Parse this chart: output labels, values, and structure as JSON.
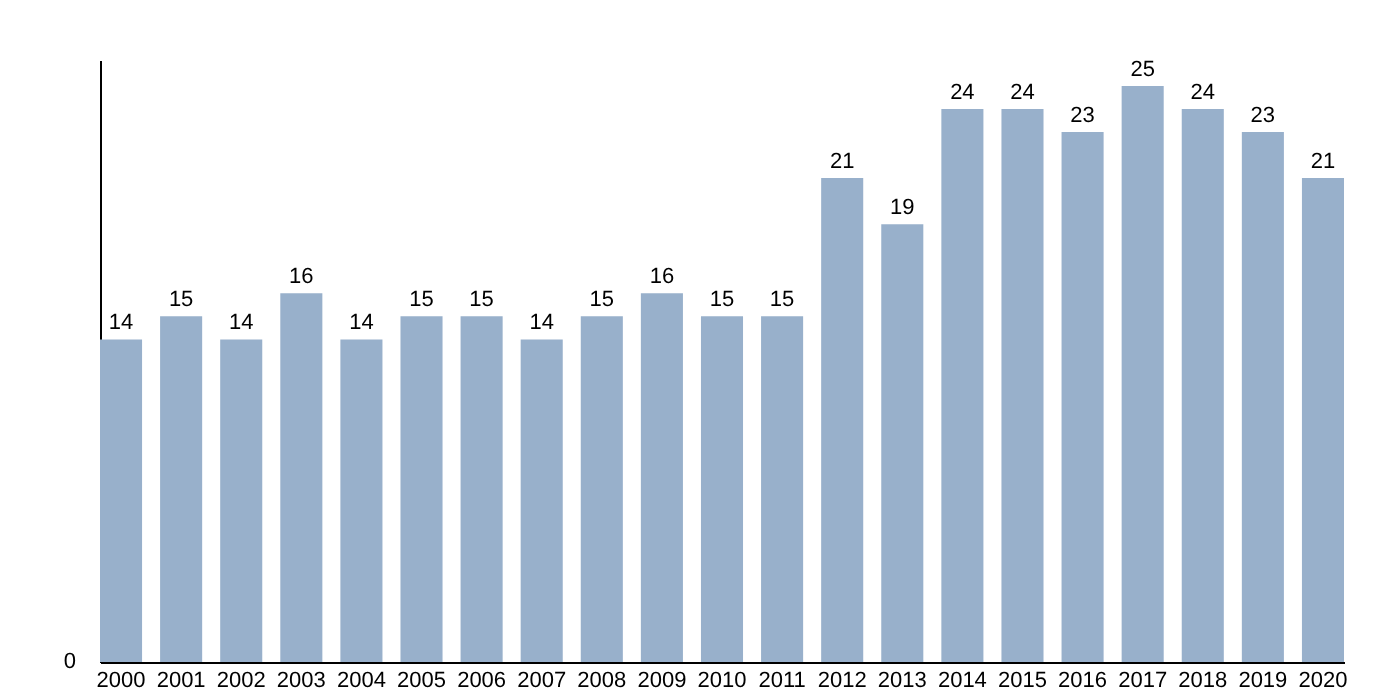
{
  "chart_data": {
    "type": "bar",
    "categories": [
      "2000",
      "2001",
      "2002",
      "2003",
      "2004",
      "2005",
      "2006",
      "2007",
      "2008",
      "2009",
      "2010",
      "2011",
      "2012",
      "2013",
      "2014",
      "2015",
      "2016",
      "2017",
      "2018",
      "2019",
      "2020"
    ],
    "values": [
      14,
      15,
      14,
      16,
      14,
      15,
      15,
      14,
      15,
      16,
      15,
      15,
      21,
      19,
      24,
      24,
      23,
      25,
      24,
      23,
      21
    ],
    "color": "#98b0cb",
    "annotations": [
      "0"
    ],
    "data_labels": true
  }
}
